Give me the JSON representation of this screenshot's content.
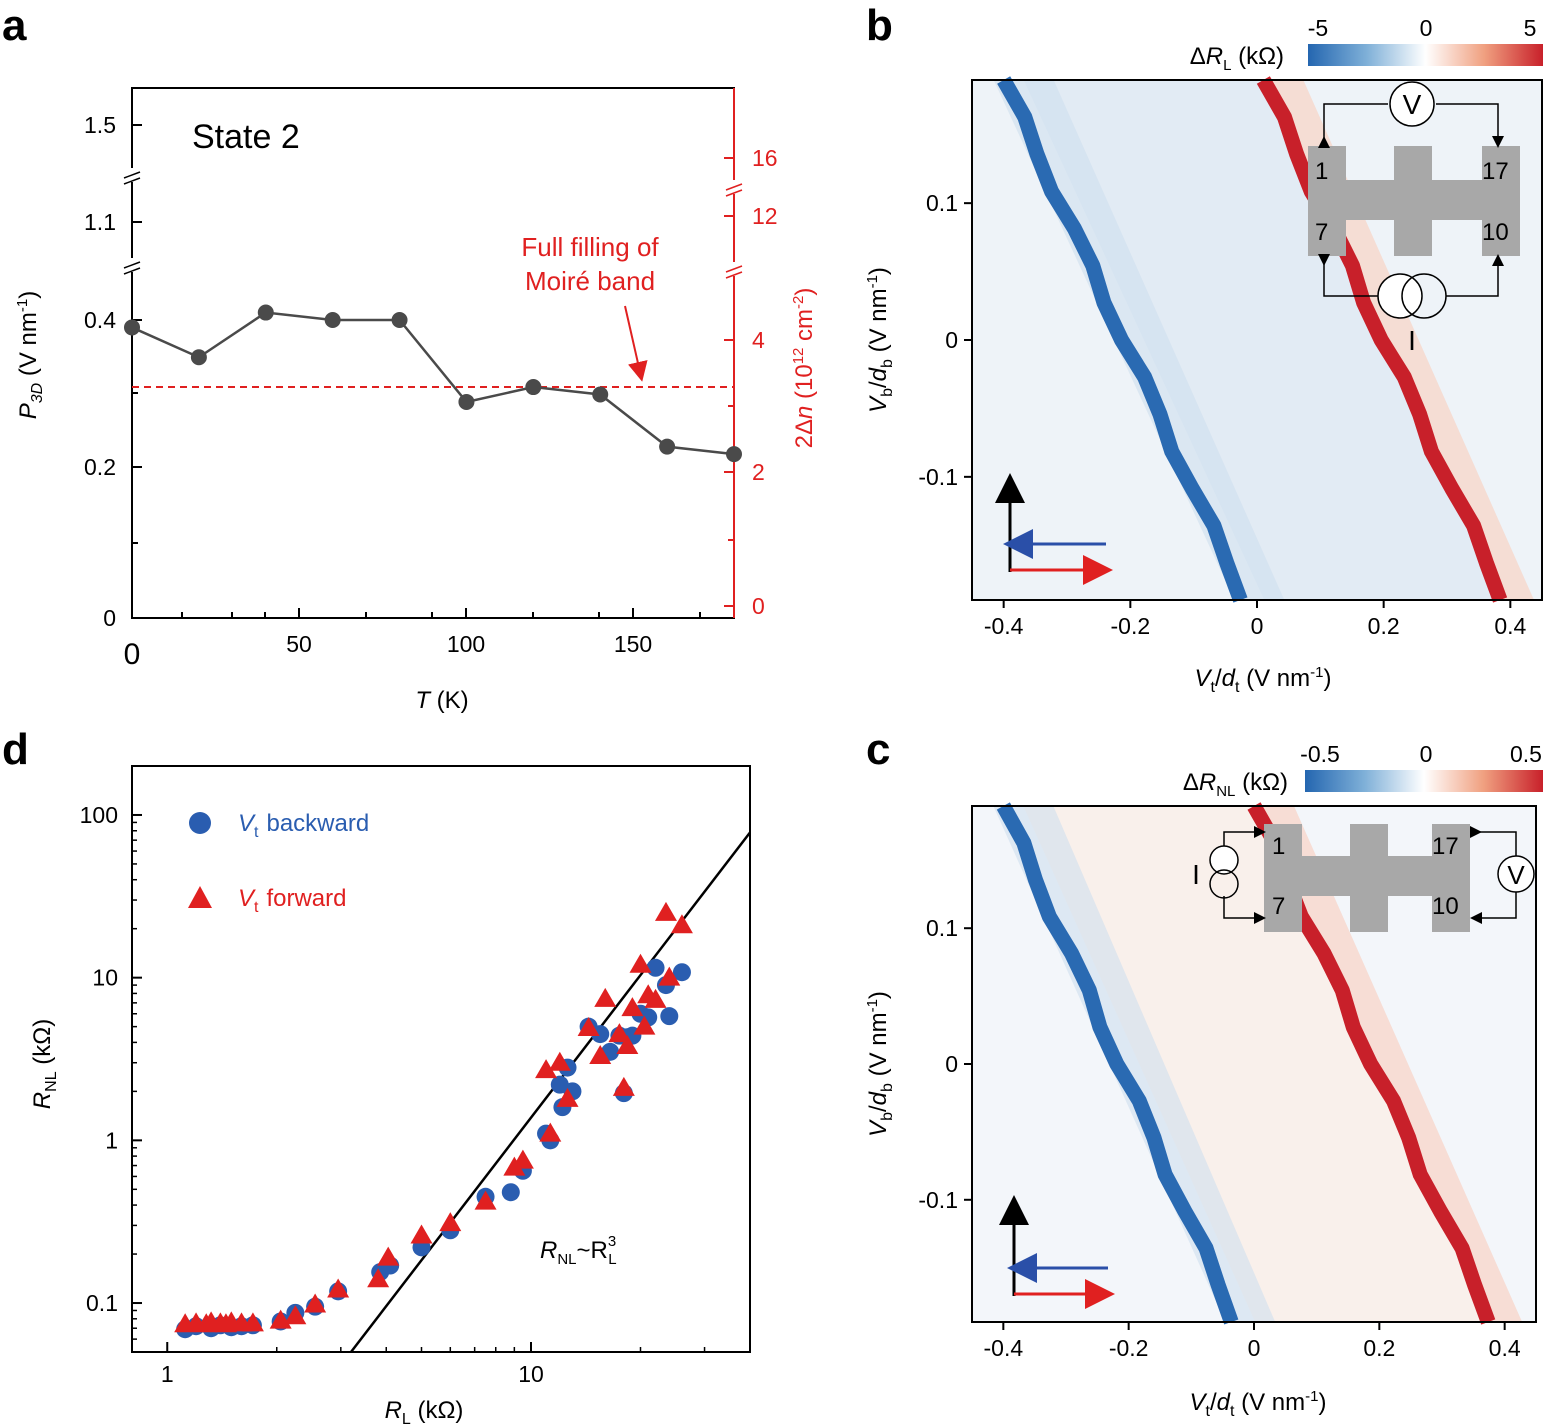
{
  "panel_letters": {
    "a": "a",
    "b": "b",
    "c": "c",
    "d": "d"
  },
  "colors": {
    "data_gray": "#4a4a4a",
    "fill_line_red": "#e02020",
    "blue": "#2a5db0",
    "red": "#e02020",
    "map_bg": "#eef3f8"
  },
  "chart_data": [
    {
      "panel": "a",
      "type": "line",
      "title": "State 2",
      "xlabel": "T (K)",
      "ylabel": "P3D (V nm-1)",
      "ylabel_right": "2Δn (1012 cm-2)",
      "xlim": [
        0,
        180
      ],
      "x_ticks": [
        "0",
        "50",
        "100",
        "150"
      ],
      "y_ticks": [
        "0",
        "0.2",
        "0.4",
        "1.1",
        "1.5"
      ],
      "y_ticks_right": [
        "0",
        "2",
        "4",
        "12",
        "16"
      ],
      "y_axis_break": "broken at 0.5–1.0 and 1.2–1.4",
      "x": [
        0,
        20,
        40,
        60,
        80,
        100,
        120,
        140,
        160,
        180
      ],
      "y": [
        0.39,
        0.35,
        0.41,
        0.4,
        0.4,
        0.29,
        0.31,
        0.3,
        0.23,
        0.22
      ],
      "reference_line": {
        "y": 0.31,
        "style": "dashed",
        "color": "#e02020"
      },
      "annotation": {
        "line1": "Full filling of",
        "line2": "Moiré band"
      }
    },
    {
      "panel": "b",
      "type": "heatmap",
      "xlabel": "Vt/dt (V nm-1)",
      "ylabel": "Vb/db (V nm-1)",
      "xlim": [
        -0.45,
        0.45
      ],
      "ylim": [
        -0.19,
        0.19
      ],
      "x_ticks": [
        "-0.4",
        "-0.2",
        "0",
        "0.2",
        "0.4"
      ],
      "y_ticks": [
        "0.1",
        "0",
        "-0.1"
      ],
      "colorbar": {
        "label": "ΔRL (kΩ)",
        "ticks": [
          "-5",
          "0",
          "5"
        ],
        "range": [
          -5,
          5
        ]
      },
      "features": [
        {
          "name": "blue ridge",
          "value": -5,
          "from": [
            -0.4,
            0.19
          ],
          "to": [
            -0.02,
            -0.19
          ]
        },
        {
          "name": "red ridge",
          "value": 5,
          "from": [
            0.01,
            0.19
          ],
          "to": [
            0.39,
            -0.19
          ]
        }
      ],
      "inset": {
        "contacts": [
          "1",
          "17",
          "7",
          "10"
        ],
        "voltmeter": "V",
        "current_source": "I"
      }
    },
    {
      "panel": "c",
      "type": "heatmap",
      "xlabel": "Vt/dt (V nm-1)",
      "ylabel": "Vb/db (V nm-1)",
      "xlim": [
        -0.45,
        0.45
      ],
      "ylim": [
        -0.19,
        0.19
      ],
      "x_ticks": [
        "-0.4",
        "-0.2",
        "0",
        "0.2",
        "0.4"
      ],
      "y_ticks": [
        "0.1",
        "0",
        "-0.1"
      ],
      "colorbar": {
        "label": "ΔRNL (kΩ)",
        "ticks": [
          "-0.5",
          "0",
          "0.5"
        ],
        "range": [
          -0.5,
          0.5
        ]
      },
      "features": [
        {
          "name": "blue ridge",
          "value": -0.5,
          "from": [
            -0.4,
            0.19
          ],
          "to": [
            -0.03,
            -0.19
          ]
        },
        {
          "name": "red ridge",
          "value": 0.5,
          "from": [
            0.0,
            0.19
          ],
          "to": [
            0.38,
            -0.19
          ]
        }
      ],
      "inset": {
        "contacts": [
          "1",
          "17",
          "7",
          "10"
        ],
        "voltmeter": "V",
        "current_source": "I"
      }
    },
    {
      "panel": "d",
      "type": "scatter",
      "xlabel": "RL (kΩ)",
      "ylabel": "RNL (kΩ)",
      "x_scale": "log",
      "y_scale": "log",
      "xlim": [
        0.8,
        40
      ],
      "ylim": [
        0.05,
        200
      ],
      "x_ticks": [
        "1",
        "10"
      ],
      "y_ticks": [
        "0.1",
        "1",
        "10",
        "100"
      ],
      "series": [
        {
          "name": "Vt backward",
          "marker": "circle",
          "color": "#2a5db0",
          "x": [
            1.12,
            1.2,
            1.32,
            1.4,
            1.5,
            1.6,
            1.72,
            2.05,
            2.25,
            2.55,
            2.95,
            3.85,
            4.1,
            5.0,
            6.0,
            7.5,
            8.8,
            9.5,
            11.0,
            11.3,
            12.0,
            12.2,
            12.6,
            13.0,
            14.4,
            15.5,
            16.5,
            17.5,
            18.0,
            18.4,
            19.0,
            20.0,
            21.0,
            22.0,
            23.5,
            24.0,
            26.0
          ],
          "y": [
            0.069,
            0.072,
            0.07,
            0.073,
            0.071,
            0.072,
            0.073,
            0.077,
            0.087,
            0.095,
            0.118,
            0.155,
            0.17,
            0.22,
            0.28,
            0.45,
            0.48,
            0.65,
            1.1,
            1.0,
            2.2,
            1.6,
            2.8,
            2.0,
            5.0,
            4.5,
            3.5,
            4.4,
            1.95,
            4.3,
            4.4,
            6.0,
            5.7,
            11.5,
            9.0,
            5.8,
            10.8
          ]
        },
        {
          "name": "Vt forward",
          "marker": "triangle",
          "color": "#e02020",
          "x": [
            1.12,
            1.2,
            1.28,
            1.32,
            1.4,
            1.45,
            1.5,
            1.6,
            1.72,
            2.05,
            2.25,
            2.55,
            2.95,
            3.8,
            4.05,
            5.0,
            6.0,
            7.5,
            9.0,
            9.5,
            11.0,
            11.3,
            12.0,
            12.6,
            14.4,
            15.5,
            16.0,
            17.5,
            18.0,
            18.4,
            19.0,
            20.0,
            20.5,
            21.0,
            22.0,
            23.5,
            24.0,
            26.0
          ],
          "y": [
            0.074,
            0.075,
            0.074,
            0.076,
            0.075,
            0.074,
            0.076,
            0.075,
            0.075,
            0.078,
            0.083,
            0.098,
            0.121,
            0.14,
            0.19,
            0.26,
            0.31,
            0.42,
            0.68,
            0.75,
            2.7,
            1.1,
            3.0,
            1.8,
            4.9,
            3.3,
            7.4,
            4.5,
            2.1,
            3.8,
            6.5,
            12.0,
            5.0,
            7.8,
            7.3,
            25.0,
            10.0,
            21.0
          ]
        },
        {
          "name": "RNL~R3L",
          "type": "line",
          "color": "#000000",
          "x": [
            3.2,
            40
          ],
          "y": [
            0.04,
            78
          ]
        }
      ],
      "legend": {
        "backward": {
          "var": "V",
          "sub": "t",
          "text": "backward"
        },
        "forward": {
          "var": "V",
          "sub": "t",
          "text": "forward"
        }
      },
      "fit_annotation": {
        "main": "R",
        "sub1": "NL",
        "tilde": "~R",
        "sup": "3",
        "sub2": "L"
      }
    }
  ]
}
